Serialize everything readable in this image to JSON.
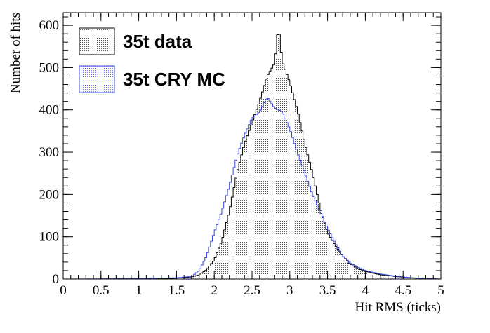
{
  "chart_data": {
    "type": "histogram",
    "xlabel": "Hit RMS (ticks)",
    "ylabel": "Number of hits",
    "xlim": [
      0,
      5
    ],
    "ylim": [
      0,
      630
    ],
    "xticks": [
      "0",
      "0.5",
      "1",
      "1.5",
      "2",
      "2.5",
      "3",
      "3.5",
      "4",
      "4.5",
      "5"
    ],
    "yticks": [
      "0",
      "100",
      "200",
      "300",
      "400",
      "500",
      "600"
    ],
    "bin_width": 0.025,
    "grid": false,
    "legend_position": "top-left",
    "series": [
      {
        "name": "35t data",
        "color": "#000000",
        "fill": "dotted-grey",
        "x": [
          0.0,
          1.0,
          1.5,
          1.7,
          1.8,
          1.9,
          2.0,
          2.1,
          2.2,
          2.3,
          2.4,
          2.5,
          2.6,
          2.7,
          2.8,
          2.85,
          2.9,
          3.0,
          3.1,
          3.2,
          3.3,
          3.4,
          3.5,
          3.6,
          3.7,
          3.8,
          3.9,
          4.0,
          4.2,
          4.4,
          4.6,
          4.8,
          5.0
        ],
        "y": [
          0,
          0,
          2,
          5,
          10,
          22,
          45,
          90,
          160,
          250,
          320,
          370,
          420,
          480,
          510,
          600,
          515,
          465,
          400,
          320,
          250,
          170,
          110,
          80,
          55,
          35,
          25,
          18,
          10,
          6,
          3,
          1,
          0
        ]
      },
      {
        "name": "35t CRY MC",
        "color": "#3344dd",
        "fill": "dotted-blue",
        "x": [
          0.0,
          1.0,
          1.5,
          1.7,
          1.8,
          1.9,
          2.0,
          2.1,
          2.2,
          2.3,
          2.4,
          2.5,
          2.6,
          2.7,
          2.8,
          2.9,
          3.0,
          3.1,
          3.2,
          3.3,
          3.4,
          3.5,
          3.6,
          3.7,
          3.8,
          3.9,
          4.0,
          4.2,
          4.4,
          4.6,
          4.8,
          5.0
        ],
        "y": [
          0,
          1,
          3,
          6,
          20,
          55,
          110,
          160,
          220,
          290,
          340,
          380,
          395,
          430,
          405,
          395,
          355,
          300,
          250,
          200,
          160,
          120,
          85,
          55,
          38,
          28,
          20,
          12,
          7,
          3,
          1,
          0
        ]
      }
    ]
  }
}
